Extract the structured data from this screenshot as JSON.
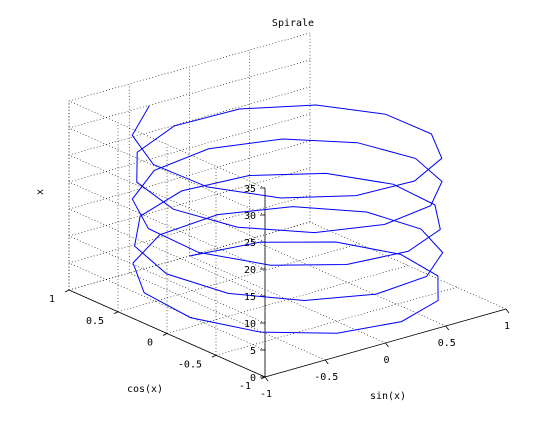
{
  "chart_data": {
    "type": "line",
    "projection": "3d",
    "title": "Spirale",
    "xlabel": "sin(x)",
    "ylabel": "cos(x)",
    "zlabel": "x",
    "xlim": [
      -1,
      1
    ],
    "ylim": [
      -1,
      1
    ],
    "zlim": [
      0,
      35
    ],
    "xticks": [
      "-1",
      "-0.5",
      "0",
      "0.5",
      "1"
    ],
    "yticks": [
      "-1",
      "-0.5",
      "0",
      "0.5",
      "1"
    ],
    "zticks": [
      "0",
      "5",
      "10",
      "15",
      "20",
      "25",
      "30",
      "35"
    ],
    "grid": true,
    "series": [
      {
        "parametric": {
          "x": "sin(t)",
          "y": "cos(t)",
          "z": "t"
        },
        "t_range": [
          0,
          31.4
        ],
        "t_step": 0.5,
        "color": "#0000ff"
      }
    ]
  }
}
